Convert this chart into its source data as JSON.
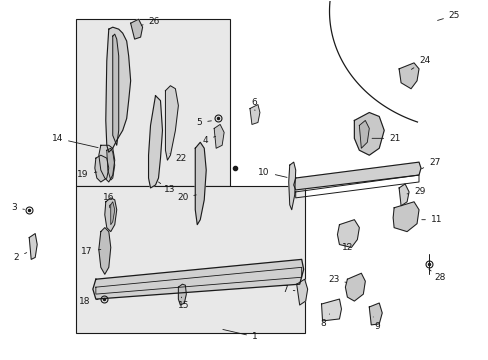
{
  "bg": "#ffffff",
  "lc": "#1a1a1a",
  "fw": 4.89,
  "fh": 3.6,
  "dpi": 100,
  "fs": 6.5
}
